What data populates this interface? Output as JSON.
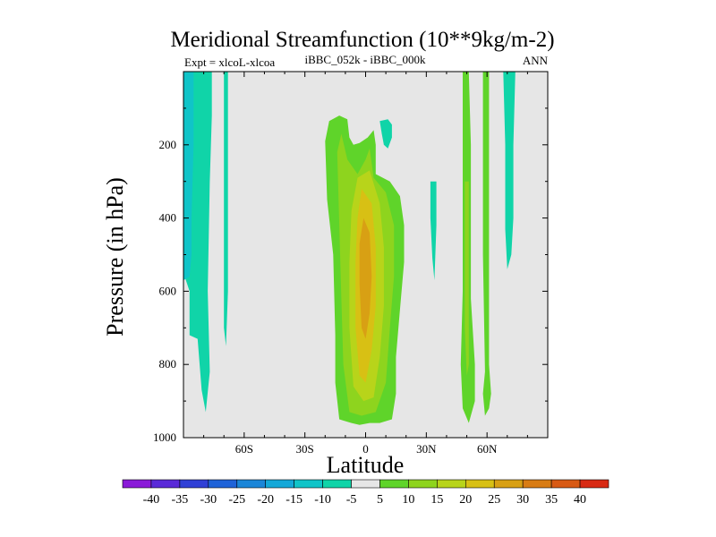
{
  "chart_data": {
    "type": "contour",
    "title": "Meridional Streamfunction (10**9kg/m-2)",
    "subtitle_left": "Expt = xlcoL-xlcoa",
    "subtitle_center": "iBBC_052k - iBBC_000k",
    "subtitle_right": "ANN",
    "xlabel": "Latitude",
    "ylabel": "Pressure (in hPa)",
    "xlim": [
      -90,
      90
    ],
    "ylim": [
      0,
      1000
    ],
    "y_inverted": true,
    "x_ticks": [
      {
        "value": -60,
        "label": "60S"
      },
      {
        "value": -30,
        "label": "30S"
      },
      {
        "value": 0,
        "label": "0"
      },
      {
        "value": 30,
        "label": "30N"
      },
      {
        "value": 60,
        "label": "60N"
      }
    ],
    "y_ticks": [
      {
        "value": 200,
        "label": "200"
      },
      {
        "value": 400,
        "label": "400"
      },
      {
        "value": 600,
        "label": "600"
      },
      {
        "value": 800,
        "label": "800"
      },
      {
        "value": 1000,
        "label": "1000"
      }
    ],
    "background_level_color": "#e6e6e6",
    "colorbar": {
      "labels": [
        "-40",
        "-35",
        "-30",
        "-25",
        "-20",
        "-15",
        "-10",
        "-5",
        "5",
        "10",
        "15",
        "20",
        "25",
        "30",
        "35",
        "40"
      ],
      "colors": [
        "#8a1ad8",
        "#5a2ad8",
        "#3040d6",
        "#1f63d8",
        "#1b86d8",
        "#14a8d8",
        "#10c4c8",
        "#10d4a8",
        "#e6e6e6",
        "#5fd42a",
        "#8ed41e",
        "#b8d41a",
        "#d8c014",
        "#d8a014",
        "#d87c14",
        "#d85a14",
        "#d82a14"
      ]
    },
    "regions": [
      {
        "level": "-5",
        "color": "#10d4a8",
        "points": [
          [
            -90,
            0
          ],
          [
            -76,
            0
          ],
          [
            -76,
            120
          ],
          [
            -77,
            300
          ],
          [
            -78,
            600
          ],
          [
            -77,
            820
          ],
          [
            -79,
            930
          ],
          [
            -81,
            870
          ],
          [
            -83,
            730
          ],
          [
            -87,
            720
          ],
          [
            -87,
            600
          ],
          [
            -90,
            550
          ]
        ]
      },
      {
        "level": "-10",
        "color": "#10c4c8",
        "points": [
          [
            -90,
            0
          ],
          [
            -85,
            0
          ],
          [
            -85,
            200
          ],
          [
            -86,
            400
          ],
          [
            -86,
            500
          ],
          [
            -87,
            560
          ],
          [
            -90,
            570
          ]
        ]
      },
      {
        "level": "-5",
        "color": "#10d4a8",
        "points": [
          [
            -70,
            0
          ],
          [
            -68,
            0
          ],
          [
            -68,
            200
          ],
          [
            -68,
            400
          ],
          [
            -68,
            600
          ],
          [
            -69,
            750
          ],
          [
            -70,
            700
          ],
          [
            -70,
            400
          ],
          [
            -70,
            200
          ]
        ]
      },
      {
        "level": "-5",
        "color": "#10d4a8",
        "points": [
          [
            7,
            135
          ],
          [
            11,
            130
          ],
          [
            13,
            145
          ],
          [
            13,
            180
          ],
          [
            11,
            210
          ],
          [
            9,
            200
          ],
          [
            8,
            170
          ]
        ]
      },
      {
        "level": "-5",
        "color": "#10d4a8",
        "points": [
          [
            32,
            300
          ],
          [
            35,
            300
          ],
          [
            35,
            420
          ],
          [
            34,
            570
          ],
          [
            33,
            510
          ],
          [
            32,
            400
          ]
        ]
      },
      {
        "level": "-5",
        "color": "#10d4a8",
        "points": [
          [
            68,
            0
          ],
          [
            74,
            0
          ],
          [
            73,
            200
          ],
          [
            73,
            400
          ],
          [
            72,
            500
          ],
          [
            70,
            540
          ],
          [
            69,
            430
          ],
          [
            69,
            200
          ]
        ]
      },
      {
        "level": "5",
        "color": "#5fd42a",
        "points": [
          [
            48,
            0
          ],
          [
            51,
            0
          ],
          [
            52,
            200
          ],
          [
            52,
            400
          ],
          [
            52,
            620
          ],
          [
            54,
            800
          ],
          [
            54,
            900
          ],
          [
            51,
            960
          ],
          [
            48,
            920
          ],
          [
            47,
            800
          ],
          [
            48,
            600
          ],
          [
            48,
            300
          ]
        ]
      },
      {
        "level": "5",
        "color": "#5fd42a",
        "points": [
          [
            58,
            0
          ],
          [
            61,
            0
          ],
          [
            61,
            250
          ],
          [
            61,
            500
          ],
          [
            61,
            800
          ],
          [
            62,
            880
          ],
          [
            61,
            920
          ],
          [
            59,
            940
          ],
          [
            58,
            880
          ],
          [
            59,
            820
          ],
          [
            58,
            500
          ],
          [
            58,
            200
          ]
        ]
      },
      {
        "level": "10",
        "color": "#8ed41e",
        "points": [
          [
            49,
            300
          ],
          [
            51,
            300
          ],
          [
            51,
            600
          ],
          [
            51,
            800
          ],
          [
            50,
            830
          ],
          [
            49,
            700
          ]
        ]
      },
      {
        "level": "5",
        "color": "#5fd42a",
        "points": [
          [
            -20,
            190
          ],
          [
            -18,
            135
          ],
          [
            -13,
            120
          ],
          [
            -9,
            130
          ],
          [
            -8,
            180
          ],
          [
            -6,
            200
          ],
          [
            -3,
            195
          ],
          [
            1,
            180
          ],
          [
            4,
            160
          ],
          [
            5,
            200
          ],
          [
            5,
            280
          ],
          [
            12,
            300
          ],
          [
            17,
            340
          ],
          [
            19,
            420
          ],
          [
            19,
            520
          ],
          [
            17,
            650
          ],
          [
            15,
            780
          ],
          [
            15,
            880
          ],
          [
            13,
            950
          ],
          [
            7,
            960
          ],
          [
            2,
            960
          ],
          [
            -3,
            965
          ],
          [
            -7,
            960
          ],
          [
            -13,
            950
          ],
          [
            -15,
            850
          ],
          [
            -15,
            720
          ],
          [
            -16,
            500
          ],
          [
            -19,
            350
          ]
        ]
      },
      {
        "level": "10",
        "color": "#8ed41e",
        "points": [
          [
            -14,
            220
          ],
          [
            -12,
            170
          ],
          [
            -9,
            240
          ],
          [
            -4,
            280
          ],
          [
            0,
            240
          ],
          [
            2,
            210
          ],
          [
            4,
            290
          ],
          [
            10,
            330
          ],
          [
            14,
            420
          ],
          [
            14,
            560
          ],
          [
            12,
            700
          ],
          [
            10,
            850
          ],
          [
            5,
            930
          ],
          [
            -2,
            940
          ],
          [
            -8,
            930
          ],
          [
            -11,
            800
          ],
          [
            -12,
            620
          ],
          [
            -13,
            420
          ]
        ]
      },
      {
        "level": "15",
        "color": "#b8d41a",
        "points": [
          [
            -4,
            290
          ],
          [
            2,
            270
          ],
          [
            7,
            360
          ],
          [
            9,
            480
          ],
          [
            9,
            640
          ],
          [
            7,
            780
          ],
          [
            4,
            890
          ],
          [
            -1,
            900
          ],
          [
            -6,
            860
          ],
          [
            -8,
            700
          ],
          [
            -8,
            520
          ],
          [
            -7,
            380
          ]
        ]
      },
      {
        "level": "20",
        "color": "#d8c014",
        "points": [
          [
            -2,
            320
          ],
          [
            3,
            360
          ],
          [
            5,
            480
          ],
          [
            5,
            640
          ],
          [
            3,
            760
          ],
          [
            0,
            850
          ],
          [
            -3,
            830
          ],
          [
            -5,
            700
          ],
          [
            -5,
            520
          ],
          [
            -4,
            400
          ]
        ]
      },
      {
        "level": "25",
        "color": "#d8a014",
        "points": [
          [
            -1,
            400
          ],
          [
            2,
            440
          ],
          [
            3,
            560
          ],
          [
            2,
            660
          ],
          [
            0,
            730
          ],
          [
            -2,
            700
          ],
          [
            -3,
            580
          ],
          [
            -3,
            470
          ]
        ]
      }
    ]
  }
}
